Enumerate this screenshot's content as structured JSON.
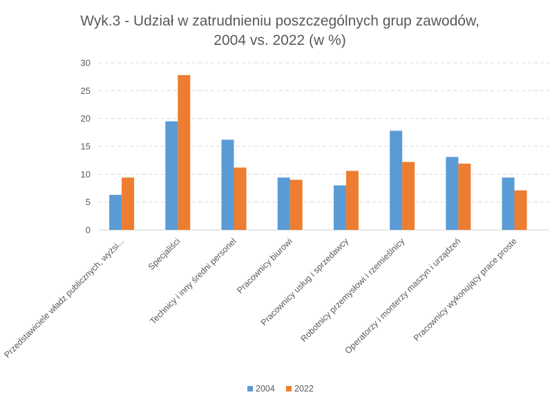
{
  "chart_data": {
    "type": "bar",
    "title": [
      "Wyk.3 - Udział w zatrudnieniu poszczególnych grup zawodów,",
      "2004 vs. 2022 (w %)"
    ],
    "categories": [
      "Przedstawiciele władz publicznych, wyżsi...",
      "Specjaliści",
      "Technicy i inny średni personel",
      "Pracownicy biurowi",
      "Pracownicy usług i sprzedawcy",
      "Robotnicy przemysłowi i rzemieślnicy",
      "Operatorzy i monterzy maszyn i urządzeń",
      "Pracownicy wykonujący prace proste"
    ],
    "series": [
      {
        "name": "2004",
        "color": "#5b9bd5",
        "values": [
          6.3,
          19.5,
          16.2,
          9.4,
          8.0,
          17.8,
          13.1,
          9.4
        ]
      },
      {
        "name": "2022",
        "color": "#ed7d31",
        "values": [
          9.4,
          27.8,
          11.2,
          9.0,
          10.6,
          12.2,
          11.9,
          7.1
        ]
      }
    ],
    "ylim": [
      0,
      30
    ],
    "yticks": [
      0,
      5,
      10,
      15,
      20,
      25,
      30
    ],
    "grid": true,
    "legend": "bottom",
    "xlabel": "",
    "ylabel": ""
  }
}
